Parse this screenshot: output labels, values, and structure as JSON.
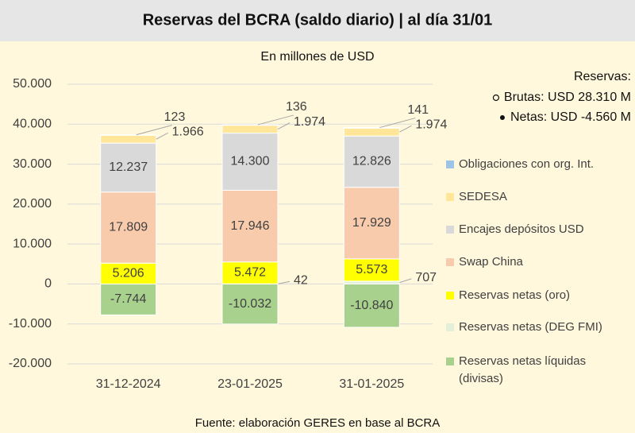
{
  "chart_data": {
    "type": "stacked_bar",
    "title": "Reservas del BCRA (saldo diario) | al día 31/01",
    "subtitle": "En millones de USD",
    "source": "Fuente: elaboración GERES en base al BCRA",
    "annotations": [
      "Reservas:",
      "Brutas: USD 28.310 M",
      "Netas: USD -4.560 M"
    ],
    "categories": [
      "31-12-2024",
      "23-01-2025",
      "31-01-2025"
    ],
    "ylim": [
      -20000,
      50000
    ],
    "yticks": [
      {
        "value": -20000,
        "label": "-20.000"
      },
      {
        "value": -10000,
        "label": "-10.000"
      },
      0,
      {
        "value": 10000,
        "label": "10.000"
      },
      {
        "value": 20000,
        "label": "20.000"
      },
      {
        "value": 30000,
        "label": "30.000"
      },
      {
        "value": 40000,
        "label": "40.000"
      },
      {
        "value": 50000,
        "label": "50.000"
      }
    ],
    "grid": true,
    "series": [
      {
        "name": "Obligaciones con org. Int.",
        "color": "#9dc3e6",
        "values": [
          123,
          136,
          141
        ]
      },
      {
        "name": "SEDESA",
        "color": "#ffe699",
        "values": [
          1966,
          1974,
          1974
        ],
        "value_labels": [
          "1.966",
          "1.974",
          "1.974"
        ]
      },
      {
        "name": "Encajes depósitos USD",
        "color": "#d9d9d9",
        "values": [
          12237,
          14300,
          12826
        ],
        "value_labels": [
          "12.237",
          "14.300",
          "12.826"
        ]
      },
      {
        "name": "Swap China",
        "color": "#f8cbad",
        "values": [
          17809,
          17946,
          17929
        ],
        "value_labels": [
          "17.809",
          "17.946",
          "17.929"
        ]
      },
      {
        "name": "Reservas netas (oro)",
        "color": "#ffff00",
        "values": [
          5206,
          5472,
          5573
        ],
        "value_labels": [
          "5.206",
          "5.472",
          "5.573"
        ]
      },
      {
        "name": "Reservas netas (DEG FMI)",
        "color": "#e2f0d9",
        "values": [
          null,
          42,
          707
        ]
      },
      {
        "name": "Reservas netas líquidas (divisas)",
        "color": "#a9d18e",
        "values": [
          -7744,
          -10032,
          -10840
        ],
        "value_labels": [
          "-7.744",
          "-10.032",
          "-10.840"
        ]
      }
    ]
  }
}
